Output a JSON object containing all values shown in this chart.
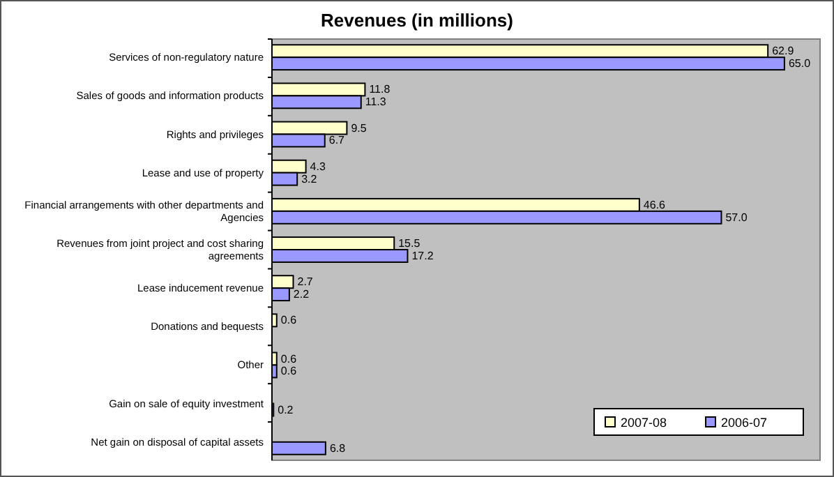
{
  "chart_data": {
    "type": "bar",
    "orientation": "horizontal",
    "title": "Revenues (in millions)",
    "categories": [
      "Services of non-regulatory nature",
      "Sales of goods and information products",
      "Rights and privileges",
      "Lease and use of property",
      "Financial arrangements with other departments and Agencies",
      "Revenues from joint project and cost sharing agreements",
      "Lease inducement revenue",
      "Donations and bequests",
      "Other",
      "Gain on sale of equity investment",
      "Net gain on disposal of capital assets"
    ],
    "series": [
      {
        "name": "2007-08",
        "color": "#ffffcc",
        "values": [
          62.9,
          11.8,
          9.5,
          4.3,
          46.6,
          15.5,
          2.7,
          0.6,
          0.6,
          null,
          null
        ],
        "value_labels": [
          "62.9",
          "11.8",
          "9.5",
          "4.3",
          "46.6",
          "15.5",
          "2.7",
          "0.6",
          "0.6",
          null,
          null
        ]
      },
      {
        "name": "2006-07",
        "color": "#9999ff",
        "values": [
          65.0,
          11.3,
          6.7,
          3.2,
          57.0,
          17.2,
          2.2,
          null,
          0.6,
          0.2,
          6.8
        ],
        "value_labels": [
          "65.0",
          "11.3",
          "6.7",
          "3.2",
          "57.0",
          "17.2",
          "2.2",
          null,
          "0.6",
          "0.2",
          "6.8"
        ]
      }
    ],
    "legend": "bottom right"
  }
}
